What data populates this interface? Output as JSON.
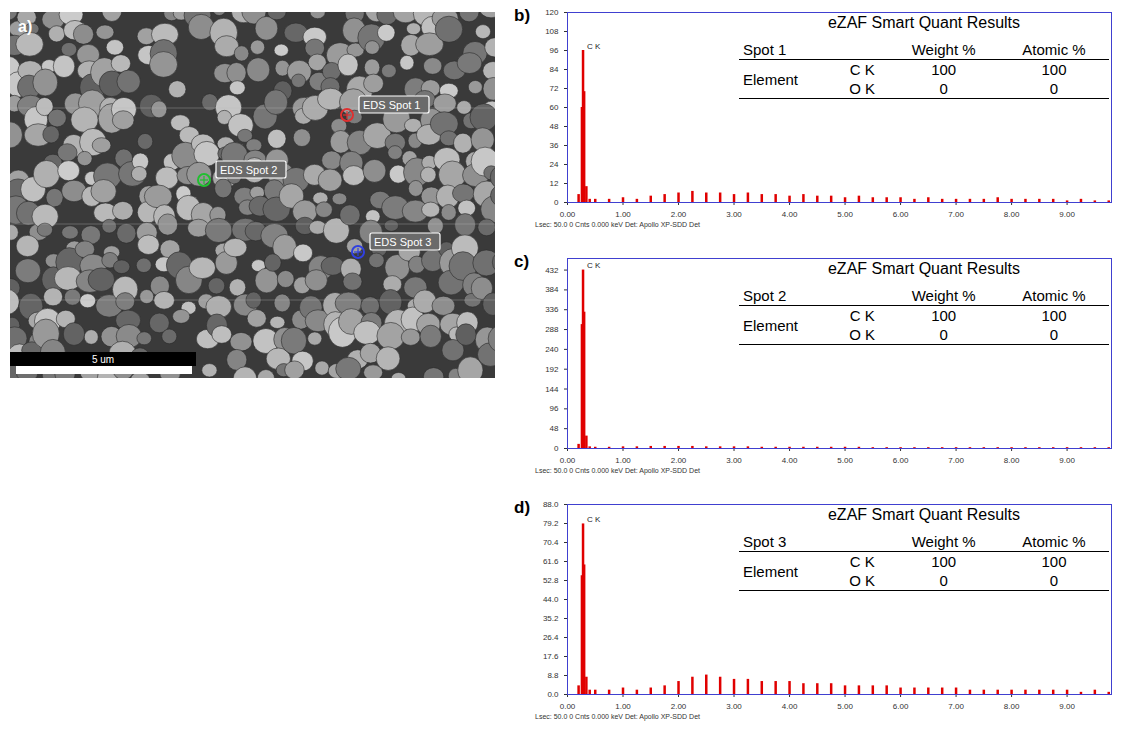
{
  "image": {
    "panel": "a)",
    "scale_bar": "5 um",
    "spots": [
      {
        "label": "EDS Spot 1",
        "color": "#e03030"
      },
      {
        "label": "EDS Spot 2",
        "color": "#20c030"
      },
      {
        "label": "EDS Spot 3",
        "color": "#3040e0"
      }
    ]
  },
  "chart_data": [
    {
      "type": "bar",
      "panel": "b)",
      "color": "#e00000",
      "grid": false,
      "caption": "Lsec: 50.0 0 Cnts 0.000 keV Det: Apollo XP-SDD Det",
      "annotations": [
        {
          "text": "C K",
          "x": 0.28,
          "y": 96
        }
      ],
      "x": [
        0.1,
        0.2,
        0.26,
        0.28,
        0.3,
        0.34,
        0.4,
        0.5,
        0.75,
        1.0,
        1.25,
        1.5,
        1.75,
        2.0,
        2.25,
        2.5,
        2.75,
        3.0,
        3.25,
        3.5,
        3.75,
        4.0,
        4.25,
        4.5,
        4.75,
        5.0,
        5.25,
        5.5,
        5.75,
        6.0,
        6.25,
        6.5,
        6.75,
        7.0,
        7.25,
        7.5,
        7.75,
        8.0,
        8.25,
        8.5,
        8.75,
        9.0,
        9.25,
        9.5,
        9.75
      ],
      "values": [
        0,
        5,
        60,
        96,
        70,
        10,
        2,
        2,
        2,
        3,
        2,
        4,
        5,
        6,
        7,
        6,
        6,
        5,
        6,
        5,
        5,
        4,
        5,
        4,
        4,
        3,
        4,
        3,
        3,
        3,
        2,
        3,
        2,
        2,
        2,
        2,
        3,
        2,
        2,
        2,
        2,
        1,
        2,
        1,
        1
      ],
      "xlim": [
        0,
        9.8
      ],
      "xticks": [
        {
          "value": 0,
          "label": "0.00"
        },
        {
          "value": 1,
          "label": "1.00"
        },
        {
          "value": 2,
          "label": "2.00"
        },
        {
          "value": 3,
          "label": "3.00"
        },
        {
          "value": 4,
          "label": "4.00"
        },
        {
          "value": 5,
          "label": "5.00"
        },
        {
          "value": 6,
          "label": "6.00"
        },
        {
          "value": 7,
          "label": "7.00"
        },
        {
          "value": 8,
          "label": "8.00"
        },
        {
          "value": 9,
          "label": "9.00"
        }
      ],
      "ylim": [
        0,
        120
      ],
      "yticks": [
        0,
        12,
        24,
        36,
        48,
        60,
        72,
        84,
        96,
        108,
        120
      ],
      "table": {
        "title": "eZAF Smart Quant Results",
        "header": [
          "Spot 1",
          "Weight %",
          "Atomic %"
        ],
        "row_head": "Element",
        "rows": [
          [
            "C K",
            100,
            100
          ],
          [
            "O K",
            0,
            0
          ]
        ]
      }
    },
    {
      "type": "bar",
      "panel": "c)",
      "color": "#e00000",
      "grid": false,
      "caption": "Lsec: 50.0 0 Cnts 0.000 keV Det: Apollo XP-SDD Det",
      "annotations": [
        {
          "text": "C K",
          "x": 0.28,
          "y": 432
        }
      ],
      "x": [
        0.1,
        0.2,
        0.26,
        0.28,
        0.3,
        0.34,
        0.4,
        0.5,
        0.75,
        1.0,
        1.25,
        1.5,
        1.75,
        2.0,
        2.25,
        2.5,
        2.75,
        3.0,
        3.25,
        3.5,
        3.75,
        4.0,
        4.25,
        4.5,
        4.75,
        5.0,
        5.25,
        5.5,
        5.75,
        6.0,
        6.25,
        6.5,
        6.75,
        7.0,
        7.25,
        7.5,
        7.75,
        8.0,
        8.25,
        8.5,
        8.75,
        9.0,
        9.25,
        9.5,
        9.75
      ],
      "values": [
        0,
        10,
        300,
        432,
        330,
        30,
        4,
        3,
        3,
        4,
        4,
        5,
        5,
        5,
        5,
        4,
        4,
        4,
        4,
        3,
        3,
        3,
        3,
        3,
        3,
        3,
        3,
        2,
        2,
        2,
        2,
        2,
        2,
        2,
        2,
        2,
        2,
        2,
        2,
        2,
        2,
        2,
        2,
        2,
        2
      ],
      "xlim": [
        0,
        9.8
      ],
      "xticks": [
        {
          "value": 0,
          "label": "0.00"
        },
        {
          "value": 1,
          "label": "1.00"
        },
        {
          "value": 2,
          "label": "2.00"
        },
        {
          "value": 3,
          "label": "3.00"
        },
        {
          "value": 4,
          "label": "4.00"
        },
        {
          "value": 5,
          "label": "5.00"
        },
        {
          "value": 6,
          "label": "6.00"
        },
        {
          "value": 7,
          "label": "7.00"
        },
        {
          "value": 8,
          "label": "8.00"
        },
        {
          "value": 9,
          "label": "9.00"
        }
      ],
      "ylim": [
        0,
        460
      ],
      "yticks": [
        0,
        48,
        96,
        144,
        192,
        240,
        288,
        336,
        384,
        432
      ],
      "table": {
        "title": "eZAF Smart Quant Results",
        "header": [
          "Spot 2",
          "Weight %",
          "Atomic %"
        ],
        "row_head": "Element",
        "rows": [
          [
            "C K",
            100,
            100
          ],
          [
            "O K",
            0,
            0
          ]
        ]
      }
    },
    {
      "type": "bar",
      "panel": "d)",
      "color": "#e00000",
      "grid": false,
      "caption": "Lsec: 50.0 0 Cnts 0.000 keV Det: Apollo XP-SDD Det",
      "annotations": [
        {
          "text": "C K",
          "x": 0.28,
          "y": 79
        }
      ],
      "x": [
        0.1,
        0.2,
        0.26,
        0.28,
        0.3,
        0.34,
        0.4,
        0.5,
        0.75,
        1.0,
        1.25,
        1.5,
        1.75,
        2.0,
        2.25,
        2.5,
        2.75,
        3.0,
        3.25,
        3.5,
        3.75,
        4.0,
        4.25,
        4.5,
        4.75,
        5.0,
        5.25,
        5.5,
        5.75,
        6.0,
        6.25,
        6.5,
        6.75,
        7.0,
        7.25,
        7.5,
        7.75,
        8.0,
        8.25,
        8.5,
        8.75,
        9.0,
        9.25,
        9.5,
        9.75
      ],
      "values": [
        0,
        4,
        55,
        79,
        60,
        8,
        2,
        2,
        2,
        3,
        2,
        3,
        4,
        6,
        8,
        9,
        8,
        7,
        7,
        6,
        6,
        6,
        5,
        5,
        5,
        4,
        4,
        4,
        4,
        3,
        3,
        3,
        3,
        3,
        2,
        2,
        2,
        2,
        2,
        2,
        2,
        2,
        1,
        2,
        1
      ],
      "xlim": [
        0,
        9.8
      ],
      "xticks": [
        {
          "value": 0,
          "label": "0.00"
        },
        {
          "value": 1,
          "label": "1.00"
        },
        {
          "value": 2,
          "label": "2.00"
        },
        {
          "value": 3,
          "label": "3.00"
        },
        {
          "value": 4,
          "label": "4.00"
        },
        {
          "value": 5,
          "label": "5.00"
        },
        {
          "value": 6,
          "label": "6.00"
        },
        {
          "value": 7,
          "label": "7.00"
        },
        {
          "value": 8,
          "label": "8.00"
        },
        {
          "value": 9,
          "label": "9.00"
        }
      ],
      "ylim": [
        0,
        88
      ],
      "yticks": [
        {
          "value": 0,
          "label": "0.0"
        },
        {
          "value": 8.8,
          "label": "8.8"
        },
        {
          "value": 17.6,
          "label": "17.6"
        },
        {
          "value": 26.4,
          "label": "26.4"
        },
        {
          "value": 35.2,
          "label": "35.2"
        },
        {
          "value": 44,
          "label": "44.0"
        },
        {
          "value": 52.8,
          "label": "52.8"
        },
        {
          "value": 61.6,
          "label": "61.6"
        },
        {
          "value": 70.4,
          "label": "70.4"
        },
        {
          "value": 79.2,
          "label": "79.2"
        },
        {
          "value": 88,
          "label": "88.0"
        }
      ],
      "table": {
        "title": "eZAF Smart Quant Results",
        "header": [
          "Spot 3",
          "Weight %",
          "Atomic %"
        ],
        "row_head": "Element",
        "rows": [
          [
            "C K",
            100,
            100
          ],
          [
            "O K",
            0,
            0
          ]
        ]
      }
    }
  ]
}
